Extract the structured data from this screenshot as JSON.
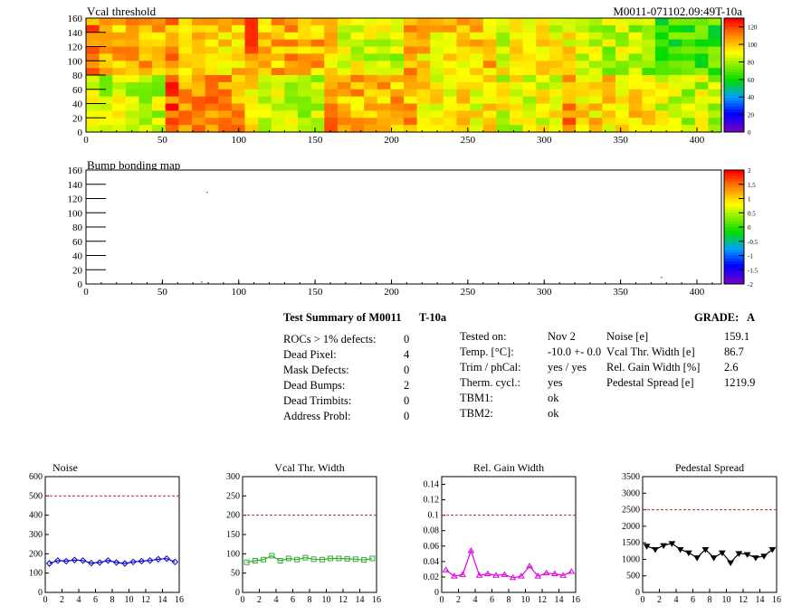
{
  "heatmaps": [
    {
      "title": "Vcal threshold",
      "right_label": "M0011-071102.09:49T-10a",
      "x_ticks": [
        0,
        50,
        100,
        150,
        200,
        250,
        300,
        350,
        400
      ],
      "y_ticks": [
        0,
        20,
        40,
        60,
        80,
        100,
        120,
        140,
        160
      ],
      "color_ticks": [
        "0",
        "20",
        "40",
        "60",
        "80",
        "100",
        "120"
      ],
      "color_range": [
        0,
        130
      ],
      "colors": {
        "low": "#7f00ff",
        "mid": "#00dd00",
        "high": "#ff0000"
      }
    },
    {
      "title": "Bump bonding map",
      "x_ticks": [
        0,
        50,
        100,
        150,
        200,
        250,
        300,
        350,
        400
      ],
      "y_ticks": [
        0,
        20,
        40,
        60,
        80,
        100,
        120,
        140,
        160
      ],
      "color_ticks": [
        "-2",
        "-1.5",
        "-1",
        "-0.5",
        "0",
        "0.5",
        "1",
        "1.5",
        "2"
      ],
      "color_range": [
        -2,
        2
      ]
    }
  ],
  "summary": {
    "title": "Test Summary of M0011",
    "run": "T-10a",
    "grade_label": "GRADE:",
    "grade": "A",
    "col1": [
      {
        "label": "ROCs > 1% defects:",
        "value": "0"
      },
      {
        "label": "Dead Pixel:",
        "value": "4"
      },
      {
        "label": "Mask Defects:",
        "value": "0"
      },
      {
        "label": "Dead Bumps:",
        "value": "2"
      },
      {
        "label": "Dead Trimbits:",
        "value": "0"
      },
      {
        "label": "Address Probl:",
        "value": "0"
      }
    ],
    "col2": [
      {
        "label": "Tested on:",
        "value": "Nov 2"
      },
      {
        "label": "Temp. [°C]:",
        "value": "-10.0 +- 0.0"
      },
      {
        "label": "Trim / phCal:",
        "value": "yes / yes"
      },
      {
        "label": "Therm. cycl.:",
        "value": "yes"
      },
      {
        "label": "TBM1:",
        "value": "ok"
      },
      {
        "label": "TBM2:",
        "value": "ok"
      }
    ],
    "col3": [
      {
        "label": "Noise [e]",
        "value": "159.1"
      },
      {
        "label": "Vcal Thr. Width [e]",
        "value": "86.7"
      },
      {
        "label": "Rel. Gain Width [%]",
        "value": "2.6"
      },
      {
        "label": "Pedestal Spread [e]",
        "value": "1219.9"
      }
    ]
  },
  "chart_data": [
    {
      "type": "heatmap",
      "title": "Vcal threshold",
      "xlim": [
        0,
        416
      ],
      "ylim": [
        0,
        160
      ],
      "blocks_per_row": 8,
      "block_mean_values": {
        "top_row": [
          103,
          98,
          104,
          85,
          98,
          90,
          83,
          66
        ],
        "bottom_row": [
          84,
          108,
          84,
          102,
          94,
          88,
          98,
          84
        ]
      },
      "zlim": [
        0,
        130
      ]
    },
    {
      "type": "heatmap",
      "title": "Bump bonding map",
      "xlim": [
        0,
        416
      ],
      "ylim": [
        0,
        160
      ],
      "zlim": [
        -2,
        2
      ]
    },
    {
      "type": "line",
      "title": "Noise",
      "x": [
        0.5,
        1.5,
        2.5,
        3.5,
        4.5,
        5.5,
        6.5,
        7.5,
        8.5,
        9.5,
        10.5,
        11.5,
        12.5,
        13.5,
        14.5,
        15.5
      ],
      "values": [
        150,
        165,
        162,
        168,
        165,
        152,
        155,
        165,
        155,
        150,
        158,
        162,
        165,
        172,
        175,
        158
      ],
      "xlim": [
        0,
        16
      ],
      "ylim": [
        0,
        600
      ],
      "x_ticks": [
        0,
        2,
        4,
        6,
        8,
        10,
        12,
        14,
        16
      ],
      "y_ticks": [
        0,
        100,
        200,
        300,
        400,
        500,
        600
      ],
      "threshold": 500,
      "marker": "diamond",
      "color": "#0000cc"
    },
    {
      "type": "line",
      "title": "Vcal Thr. Width",
      "x": [
        0.5,
        1.5,
        2.5,
        3.5,
        4.5,
        5.5,
        6.5,
        7.5,
        8.5,
        9.5,
        10.5,
        11.5,
        12.5,
        13.5,
        14.5,
        15.5
      ],
      "values": [
        78,
        82,
        85,
        95,
        82,
        88,
        85,
        90,
        86,
        85,
        88,
        88,
        87,
        86,
        84,
        88
      ],
      "xlim": [
        0,
        16
      ],
      "ylim": [
        0,
        300
      ],
      "x_ticks": [
        0,
        2,
        4,
        6,
        8,
        10,
        12,
        14,
        16
      ],
      "y_ticks": [
        0,
        50,
        100,
        150,
        200,
        250,
        300
      ],
      "threshold": 200,
      "marker": "square",
      "color": "#33aa33"
    },
    {
      "type": "line",
      "title": "Rel. Gain Width",
      "x": [
        0.5,
        1.5,
        2.5,
        3.5,
        4.5,
        5.5,
        6.5,
        7.5,
        8.5,
        9.5,
        10.5,
        11.5,
        12.5,
        13.5,
        14.5,
        15.5
      ],
      "values": [
        0.029,
        0.021,
        0.023,
        0.054,
        0.022,
        0.024,
        0.022,
        0.023,
        0.019,
        0.021,
        0.034,
        0.021,
        0.025,
        0.024,
        0.022,
        0.027
      ],
      "xlim": [
        0,
        16
      ],
      "ylim": [
        0,
        0.15
      ],
      "x_ticks": [
        0,
        2,
        4,
        6,
        8,
        10,
        12,
        14,
        16
      ],
      "y_ticks": [
        "0",
        "0.02",
        "0.04",
        "0.06",
        "0.08",
        "0.1",
        "0.12",
        "0.14"
      ],
      "threshold": 0.1,
      "marker": "triangle",
      "color": "#dd00dd"
    },
    {
      "type": "line",
      "title": "Pedestal Spread",
      "x": [
        0.5,
        1.5,
        2.5,
        3.5,
        4.5,
        5.5,
        6.5,
        7.5,
        8.5,
        9.5,
        10.5,
        11.5,
        12.5,
        13.5,
        14.5,
        15.5
      ],
      "values": [
        1400,
        1300,
        1420,
        1480,
        1300,
        1200,
        1050,
        1300,
        1050,
        1200,
        900,
        1180,
        1150,
        1050,
        1100,
        1300
      ],
      "xlim": [
        0,
        16
      ],
      "ylim": [
        0,
        3500
      ],
      "x_ticks": [
        0,
        2,
        4,
        6,
        8,
        10,
        12,
        14,
        16
      ],
      "y_ticks": [
        0,
        500,
        1000,
        1500,
        2000,
        2500,
        3000,
        3500
      ],
      "threshold": 2500,
      "marker": "triangle-down",
      "color": "#000000"
    }
  ]
}
